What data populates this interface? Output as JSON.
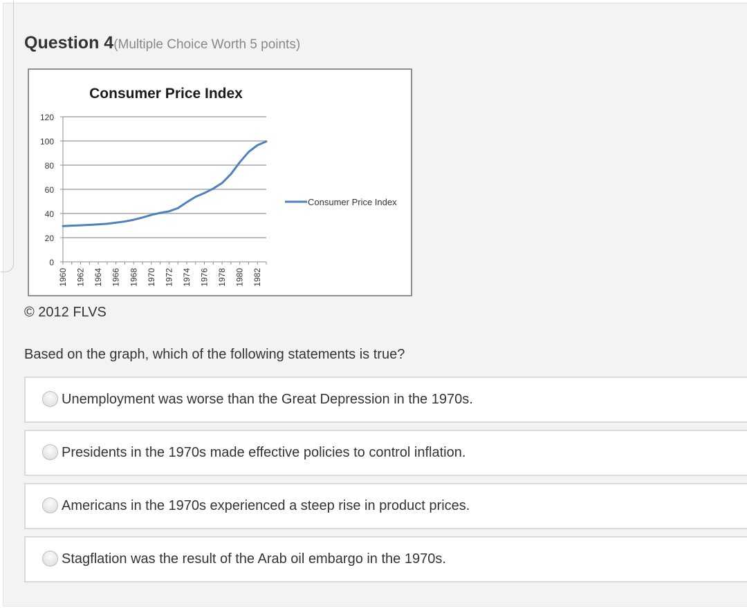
{
  "question": {
    "number_label": "Question 4",
    "worth_label": "(Multiple Choice Worth 5 points)",
    "copyright": "© 2012 FLVS",
    "prompt": "Based on the graph, which of the following statements is true?",
    "options": [
      {
        "label": "Unemployment was worse than the Great Depression in the 1970s.",
        "selected": false
      },
      {
        "label": "Presidents in the 1970s made effective policies to control inflation.",
        "selected": false
      },
      {
        "label": "Americans in the 1970s experienced a steep rise in product prices.",
        "selected": false
      },
      {
        "label": "Stagflation was the result of the Arab oil embargo in the 1970s.",
        "selected": false
      }
    ]
  },
  "chart_data": {
    "type": "line",
    "title": "Consumer Price Index",
    "xlabel": "",
    "ylabel": "",
    "ylim": [
      0,
      120
    ],
    "xlim": [
      1960,
      1983
    ],
    "y_ticks": [
      0,
      20,
      40,
      60,
      80,
      100,
      120
    ],
    "x_tick_labels": [
      "1960",
      "1962",
      "1964",
      "1966",
      "1968",
      "1970",
      "1972",
      "1974",
      "1976",
      "1978",
      "1980",
      "1982"
    ],
    "grid": true,
    "legend_position": "right",
    "series": [
      {
        "name": "Consumer Price Index",
        "color": "#4f81bd",
        "x": [
          1960,
          1961,
          1962,
          1963,
          1964,
          1965,
          1966,
          1967,
          1968,
          1969,
          1970,
          1971,
          1972,
          1973,
          1974,
          1975,
          1976,
          1977,
          1978,
          1979,
          1980,
          1981,
          1982,
          1983
        ],
        "values": [
          29.6,
          29.9,
          30.2,
          30.6,
          31.0,
          31.5,
          32.4,
          33.4,
          34.8,
          36.7,
          38.8,
          40.5,
          41.8,
          44.4,
          49.3,
          53.8,
          56.9,
          60.6,
          65.2,
          72.6,
          82.4,
          90.9,
          96.5,
          99.6
        ]
      }
    ]
  }
}
